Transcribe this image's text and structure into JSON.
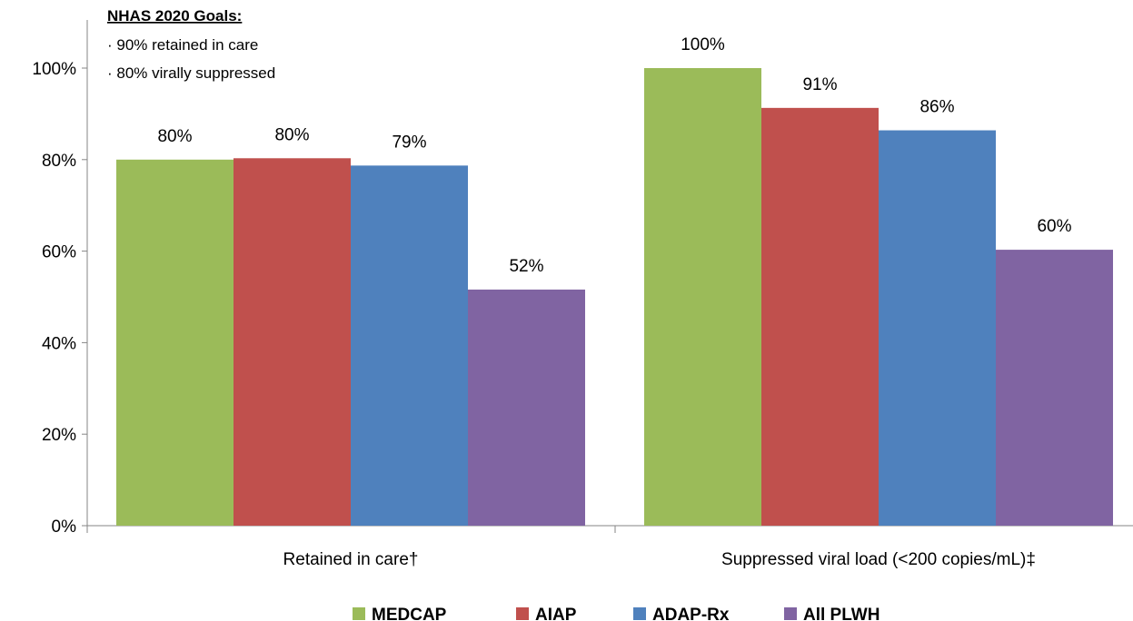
{
  "chart_data": {
    "type": "bar",
    "categories": [
      "Retained in care†",
      "Suppressed viral load (<200 copies/mL)‡"
    ],
    "series": [
      {
        "name": "MEDCAP",
        "color": "#9BBB59",
        "values": [
          80,
          100
        ],
        "labels": [
          "80%",
          "100%"
        ]
      },
      {
        "name": "AIAP",
        "color": "#C0504D",
        "values": [
          80.3,
          91.3
        ],
        "labels": [
          "80%",
          "91%"
        ]
      },
      {
        "name": "ADAP-Rx",
        "color": "#4F81BD",
        "values": [
          78.7,
          86.4
        ],
        "labels": [
          "79%",
          "86%"
        ]
      },
      {
        "name": "All PLWH",
        "color": "#8064A2",
        "values": [
          51.6,
          60.3
        ],
        "labels": [
          "52%",
          "60%"
        ]
      }
    ],
    "ylim": [
      0,
      100
    ],
    "yticks": [
      "0%",
      "20%",
      "40%",
      "60%",
      "80%",
      "100%"
    ],
    "legend_position": "bottom",
    "grid": false,
    "annotation": {
      "title": "NHAS 2020 Goals:",
      "items": [
        "90% retained in care",
        "80% virally suppressed"
      ]
    }
  }
}
